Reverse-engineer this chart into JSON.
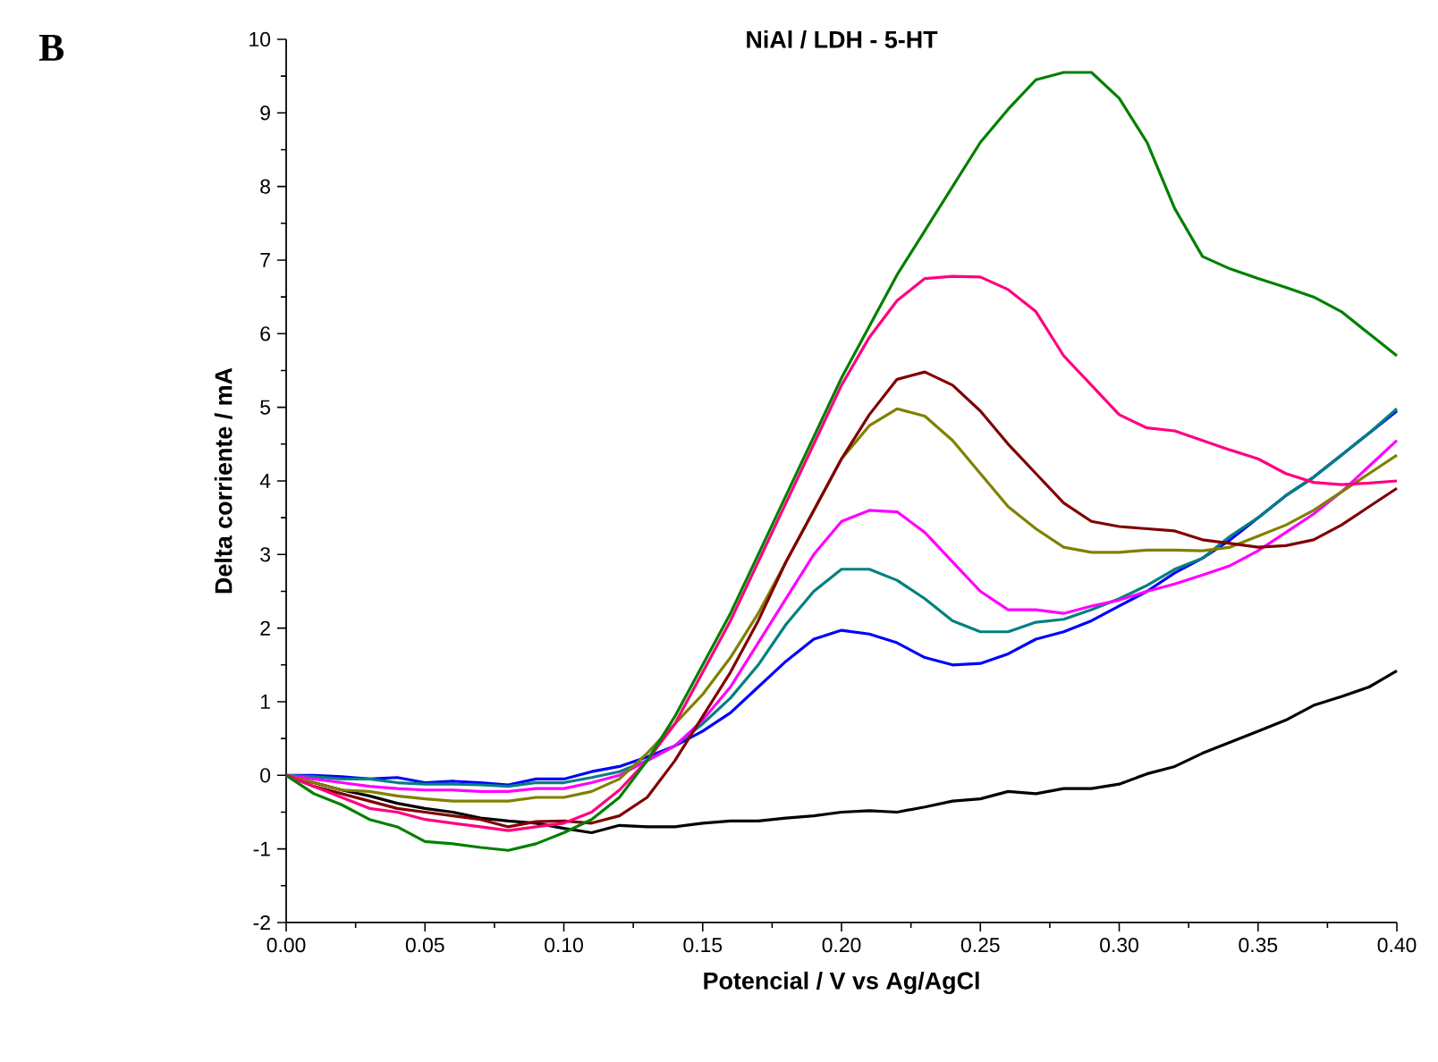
{
  "chart_data": {
    "type": "line",
    "title": "NiAl / LDH - 5-HT",
    "xlabel": "Potencial / V vs Ag/AgCl",
    "ylabel": "Delta corriente / mA",
    "annotations": [
      "B"
    ],
    "x": [
      0.0,
      0.01,
      0.02,
      0.03,
      0.04,
      0.05,
      0.06,
      0.07,
      0.08,
      0.09,
      0.1,
      0.11,
      0.12,
      0.13,
      0.14,
      0.15,
      0.16,
      0.17,
      0.18,
      0.19,
      0.2,
      0.21,
      0.22,
      0.23,
      0.24,
      0.25,
      0.26,
      0.27,
      0.28,
      0.29,
      0.3,
      0.31,
      0.32,
      0.33,
      0.34,
      0.35,
      0.36,
      0.37,
      0.38,
      0.39,
      0.4
    ],
    "xlim": [
      0,
      0.4
    ],
    "xticks": [
      {
        "value": 0,
        "label": "0.00"
      },
      {
        "value": 0.05,
        "label": "0.05"
      },
      {
        "value": 0.1,
        "label": "0.10"
      },
      {
        "value": 0.15,
        "label": "0.15"
      },
      {
        "value": 0.2,
        "label": "0.20"
      },
      {
        "value": 0.25,
        "label": "0.25"
      },
      {
        "value": 0.3,
        "label": "0.30"
      },
      {
        "value": 0.35,
        "label": "0.35"
      },
      {
        "value": 0.4,
        "label": "0.40"
      }
    ],
    "ylim": [
      -2,
      10
    ],
    "yticks": [
      -2,
      -1,
      0,
      1,
      2,
      3,
      4,
      5,
      6,
      7,
      8,
      9,
      10
    ],
    "series": [
      {
        "color": "#000000",
        "values": [
          0,
          -0.1,
          -0.2,
          -0.28,
          -0.38,
          -0.45,
          -0.5,
          -0.58,
          -0.62,
          -0.65,
          -0.72,
          -0.78,
          -0.68,
          -0.7,
          -0.7,
          -0.65,
          -0.62,
          -0.62,
          -0.58,
          -0.55,
          -0.5,
          -0.48,
          -0.5,
          -0.43,
          -0.35,
          -0.32,
          -0.22,
          -0.25,
          -0.18,
          -0.18,
          -0.12,
          0.02,
          0.12,
          0.3,
          0.45,
          0.6,
          0.75,
          0.95,
          1.07,
          1.2,
          1.42
        ]
      },
      {
        "color": "#0000ff",
        "values": [
          0,
          0,
          -0.02,
          -0.05,
          -0.03,
          -0.1,
          -0.08,
          -0.1,
          -0.13,
          -0.05,
          -0.05,
          0.05,
          0.12,
          0.25,
          0.4,
          0.6,
          0.85,
          1.2,
          1.55,
          1.85,
          1.97,
          1.92,
          1.8,
          1.6,
          1.5,
          1.52,
          1.65,
          1.85,
          1.95,
          2.1,
          2.3,
          2.5,
          2.75,
          2.95,
          3.2,
          3.5,
          3.8,
          4.05,
          4.35,
          4.65,
          4.95
        ]
      },
      {
        "color": "#008080",
        "values": [
          0,
          -0.02,
          -0.05,
          -0.05,
          -0.1,
          -0.12,
          -0.12,
          -0.13,
          -0.15,
          -0.1,
          -0.1,
          -0.03,
          0.05,
          0.2,
          0.4,
          0.7,
          1.05,
          1.5,
          2.05,
          2.5,
          2.8,
          2.8,
          2.65,
          2.4,
          2.1,
          1.95,
          1.95,
          2.08,
          2.12,
          2.25,
          2.4,
          2.58,
          2.8,
          2.95,
          3.25,
          3.5,
          3.8,
          4.05,
          4.35,
          4.65,
          4.98
        ]
      },
      {
        "color": "#ff00ff",
        "values": [
          0,
          -0.05,
          -0.1,
          -0.15,
          -0.18,
          -0.2,
          -0.2,
          -0.22,
          -0.22,
          -0.18,
          -0.18,
          -0.1,
          0,
          0.2,
          0.4,
          0.75,
          1.2,
          1.8,
          2.4,
          3.0,
          3.45,
          3.6,
          3.58,
          3.3,
          2.9,
          2.5,
          2.25,
          2.25,
          2.2,
          2.3,
          2.38,
          2.5,
          2.6,
          2.72,
          2.85,
          3.05,
          3.3,
          3.55,
          3.85,
          4.2,
          4.55
        ]
      },
      {
        "color": "#808000",
        "values": [
          0,
          -0.1,
          -0.2,
          -0.22,
          -0.28,
          -0.32,
          -0.35,
          -0.35,
          -0.35,
          -0.3,
          -0.3,
          -0.22,
          -0.05,
          0.3,
          0.7,
          1.1,
          1.6,
          2.2,
          2.9,
          3.6,
          4.3,
          4.75,
          4.98,
          4.88,
          4.55,
          4.1,
          3.65,
          3.35,
          3.1,
          3.03,
          3.03,
          3.06,
          3.06,
          3.05,
          3.1,
          3.25,
          3.4,
          3.6,
          3.85,
          4.1,
          4.35
        ]
      },
      {
        "color": "#800000",
        "values": [
          0,
          -0.15,
          -0.25,
          -0.35,
          -0.45,
          -0.5,
          -0.55,
          -0.6,
          -0.7,
          -0.63,
          -0.62,
          -0.65,
          -0.55,
          -0.3,
          0.2,
          0.8,
          1.4,
          2.1,
          2.9,
          3.6,
          4.3,
          4.9,
          5.38,
          5.48,
          5.3,
          4.95,
          4.5,
          4.1,
          3.7,
          3.45,
          3.38,
          3.35,
          3.32,
          3.2,
          3.15,
          3.1,
          3.12,
          3.2,
          3.4,
          3.65,
          3.9
        ]
      },
      {
        "color": "#ff0080",
        "values": [
          0,
          -0.15,
          -0.3,
          -0.45,
          -0.5,
          -0.6,
          -0.65,
          -0.7,
          -0.75,
          -0.7,
          -0.65,
          -0.5,
          -0.2,
          0.2,
          0.7,
          1.4,
          2.1,
          2.9,
          3.7,
          4.5,
          5.3,
          5.95,
          6.45,
          6.75,
          6.78,
          6.77,
          6.6,
          6.3,
          5.7,
          5.3,
          4.9,
          4.72,
          4.68,
          4.55,
          4.42,
          4.3,
          4.1,
          3.98,
          3.95,
          3.97,
          4.0
        ]
      },
      {
        "color": "#008000",
        "values": [
          0,
          -0.25,
          -0.4,
          -0.6,
          -0.7,
          -0.9,
          -0.93,
          -0.98,
          -1.02,
          -0.93,
          -0.78,
          -0.6,
          -0.3,
          0.2,
          0.8,
          1.5,
          2.2,
          3.0,
          3.8,
          4.6,
          5.4,
          6.1,
          6.8,
          7.4,
          8.0,
          8.6,
          9.05,
          9.45,
          9.55,
          9.55,
          9.2,
          8.6,
          7.7,
          7.05,
          6.88,
          6.75,
          6.63,
          6.5,
          6.3,
          6.0,
          5.7
        ]
      }
    ]
  }
}
